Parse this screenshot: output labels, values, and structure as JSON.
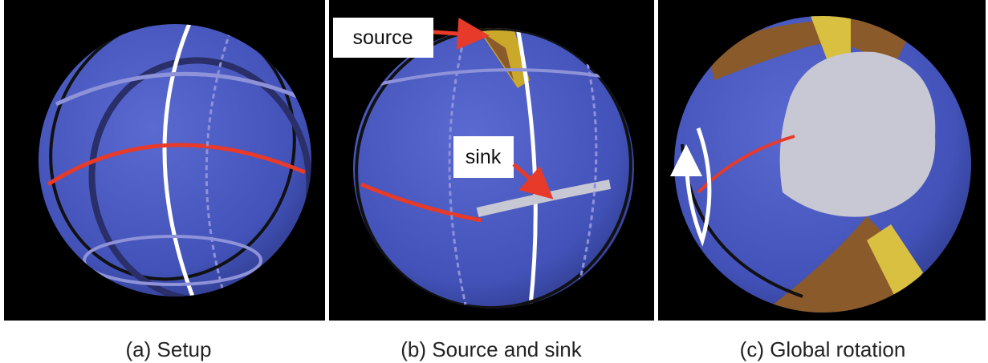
{
  "labels": {
    "source": "source",
    "sink": "sink"
  },
  "captions": [
    "(a) Setup",
    "(b) Source and sink",
    "(c) Global rotation"
  ]
}
